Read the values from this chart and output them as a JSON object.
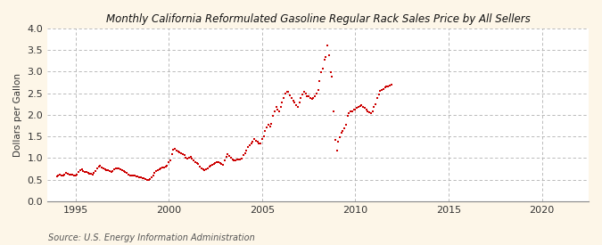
{
  "title": "Monthly California Reformulated Gasoline Regular Rack Sales Price by All Sellers",
  "ylabel": "Dollars per Gallon",
  "source": "Source: U.S. Energy Information Administration",
  "background_color": "#fdf6e8",
  "plot_bg_color": "#ffffff",
  "dot_color": "#cc0000",
  "xlim": [
    1993.5,
    2022.5
  ],
  "ylim": [
    0.0,
    4.0
  ],
  "xticks": [
    1995,
    2000,
    2005,
    2010,
    2015,
    2020
  ],
  "yticks": [
    0.0,
    0.5,
    1.0,
    1.5,
    2.0,
    2.5,
    3.0,
    3.5,
    4.0
  ],
  "data": [
    [
      1994.0,
      0.58
    ],
    [
      1994.083,
      0.6
    ],
    [
      1994.167,
      0.61
    ],
    [
      1994.25,
      0.6
    ],
    [
      1994.333,
      0.6
    ],
    [
      1994.417,
      0.62
    ],
    [
      1994.5,
      0.65
    ],
    [
      1994.583,
      0.64
    ],
    [
      1994.667,
      0.62
    ],
    [
      1994.75,
      0.61
    ],
    [
      1994.833,
      0.62
    ],
    [
      1994.917,
      0.6
    ],
    [
      1995.0,
      0.6
    ],
    [
      1995.083,
      0.62
    ],
    [
      1995.167,
      0.68
    ],
    [
      1995.25,
      0.72
    ],
    [
      1995.333,
      0.73
    ],
    [
      1995.417,
      0.7
    ],
    [
      1995.5,
      0.68
    ],
    [
      1995.583,
      0.67
    ],
    [
      1995.667,
      0.65
    ],
    [
      1995.75,
      0.64
    ],
    [
      1995.833,
      0.63
    ],
    [
      1995.917,
      0.62
    ],
    [
      1996.0,
      0.65
    ],
    [
      1996.083,
      0.7
    ],
    [
      1996.167,
      0.76
    ],
    [
      1996.25,
      0.8
    ],
    [
      1996.333,
      0.82
    ],
    [
      1996.417,
      0.79
    ],
    [
      1996.5,
      0.76
    ],
    [
      1996.583,
      0.74
    ],
    [
      1996.667,
      0.72
    ],
    [
      1996.75,
      0.71
    ],
    [
      1996.833,
      0.7
    ],
    [
      1996.917,
      0.68
    ],
    [
      1997.0,
      0.7
    ],
    [
      1997.083,
      0.73
    ],
    [
      1997.167,
      0.76
    ],
    [
      1997.25,
      0.77
    ],
    [
      1997.333,
      0.76
    ],
    [
      1997.417,
      0.74
    ],
    [
      1997.5,
      0.72
    ],
    [
      1997.583,
      0.7
    ],
    [
      1997.667,
      0.68
    ],
    [
      1997.75,
      0.65
    ],
    [
      1997.833,
      0.62
    ],
    [
      1997.917,
      0.6
    ],
    [
      1998.0,
      0.59
    ],
    [
      1998.083,
      0.59
    ],
    [
      1998.167,
      0.59
    ],
    [
      1998.25,
      0.58
    ],
    [
      1998.333,
      0.57
    ],
    [
      1998.417,
      0.56
    ],
    [
      1998.5,
      0.55
    ],
    [
      1998.583,
      0.54
    ],
    [
      1998.667,
      0.53
    ],
    [
      1998.75,
      0.52
    ],
    [
      1998.833,
      0.5
    ],
    [
      1998.917,
      0.49
    ],
    [
      1999.0,
      0.52
    ],
    [
      1999.083,
      0.55
    ],
    [
      1999.167,
      0.6
    ],
    [
      1999.25,
      0.65
    ],
    [
      1999.333,
      0.7
    ],
    [
      1999.417,
      0.72
    ],
    [
      1999.5,
      0.75
    ],
    [
      1999.583,
      0.76
    ],
    [
      1999.667,
      0.78
    ],
    [
      1999.75,
      0.79
    ],
    [
      1999.833,
      0.8
    ],
    [
      1999.917,
      0.82
    ],
    [
      2000.0,
      0.9
    ],
    [
      2000.083,
      0.95
    ],
    [
      2000.167,
      1.1
    ],
    [
      2000.25,
      1.2
    ],
    [
      2000.333,
      1.22
    ],
    [
      2000.417,
      1.18
    ],
    [
      2000.5,
      1.15
    ],
    [
      2000.583,
      1.14
    ],
    [
      2000.667,
      1.12
    ],
    [
      2000.75,
      1.1
    ],
    [
      2000.833,
      1.08
    ],
    [
      2000.917,
      1.0
    ],
    [
      2001.0,
      0.99
    ],
    [
      2001.083,
      1.01
    ],
    [
      2001.167,
      1.02
    ],
    [
      2001.25,
      0.98
    ],
    [
      2001.333,
      0.94
    ],
    [
      2001.417,
      0.91
    ],
    [
      2001.5,
      0.89
    ],
    [
      2001.583,
      0.87
    ],
    [
      2001.667,
      0.8
    ],
    [
      2001.75,
      0.77
    ],
    [
      2001.833,
      0.74
    ],
    [
      2001.917,
      0.72
    ],
    [
      2002.0,
      0.74
    ],
    [
      2002.083,
      0.77
    ],
    [
      2002.167,
      0.8
    ],
    [
      2002.25,
      0.82
    ],
    [
      2002.333,
      0.85
    ],
    [
      2002.417,
      0.87
    ],
    [
      2002.5,
      0.89
    ],
    [
      2002.583,
      0.91
    ],
    [
      2002.667,
      0.91
    ],
    [
      2002.75,
      0.89
    ],
    [
      2002.833,
      0.87
    ],
    [
      2002.917,
      0.85
    ],
    [
      2003.0,
      0.95
    ],
    [
      2003.083,
      1.02
    ],
    [
      2003.167,
      1.1
    ],
    [
      2003.25,
      1.05
    ],
    [
      2003.333,
      1.0
    ],
    [
      2003.417,
      0.97
    ],
    [
      2003.5,
      0.95
    ],
    [
      2003.583,
      0.95
    ],
    [
      2003.667,
      0.97
    ],
    [
      2003.75,
      0.97
    ],
    [
      2003.833,
      0.97
    ],
    [
      2003.917,
      0.99
    ],
    [
      2004.0,
      1.07
    ],
    [
      2004.083,
      1.12
    ],
    [
      2004.167,
      1.18
    ],
    [
      2004.25,
      1.25
    ],
    [
      2004.333,
      1.3
    ],
    [
      2004.417,
      1.34
    ],
    [
      2004.5,
      1.38
    ],
    [
      2004.583,
      1.44
    ],
    [
      2004.667,
      1.41
    ],
    [
      2004.75,
      1.37
    ],
    [
      2004.833,
      1.34
    ],
    [
      2004.917,
      1.34
    ],
    [
      2005.0,
      1.45
    ],
    [
      2005.083,
      1.5
    ],
    [
      2005.167,
      1.62
    ],
    [
      2005.25,
      1.7
    ],
    [
      2005.333,
      1.78
    ],
    [
      2005.417,
      1.74
    ],
    [
      2005.5,
      1.8
    ],
    [
      2005.583,
      1.98
    ],
    [
      2005.667,
      2.08
    ],
    [
      2005.75,
      2.18
    ],
    [
      2005.833,
      2.12
    ],
    [
      2005.917,
      2.08
    ],
    [
      2006.0,
      2.18
    ],
    [
      2006.083,
      2.28
    ],
    [
      2006.167,
      2.4
    ],
    [
      2006.25,
      2.5
    ],
    [
      2006.333,
      2.54
    ],
    [
      2006.417,
      2.53
    ],
    [
      2006.5,
      2.46
    ],
    [
      2006.583,
      2.38
    ],
    [
      2006.667,
      2.33
    ],
    [
      2006.75,
      2.28
    ],
    [
      2006.833,
      2.22
    ],
    [
      2006.917,
      2.18
    ],
    [
      2007.0,
      2.28
    ],
    [
      2007.083,
      2.38
    ],
    [
      2007.167,
      2.48
    ],
    [
      2007.25,
      2.53
    ],
    [
      2007.333,
      2.49
    ],
    [
      2007.417,
      2.44
    ],
    [
      2007.5,
      2.44
    ],
    [
      2007.583,
      2.39
    ],
    [
      2007.667,
      2.37
    ],
    [
      2007.75,
      2.39
    ],
    [
      2007.833,
      2.44
    ],
    [
      2007.917,
      2.49
    ],
    [
      2008.0,
      2.58
    ],
    [
      2008.083,
      2.78
    ],
    [
      2008.167,
      2.98
    ],
    [
      2008.25,
      3.08
    ],
    [
      2008.333,
      3.28
    ],
    [
      2008.417,
      3.33
    ],
    [
      2008.5,
      3.6
    ],
    [
      2008.583,
      3.38
    ],
    [
      2008.667,
      2.98
    ],
    [
      2008.75,
      2.88
    ],
    [
      2008.833,
      2.08
    ],
    [
      2008.917,
      1.43
    ],
    [
      2009.0,
      1.18
    ],
    [
      2009.083,
      1.38
    ],
    [
      2009.167,
      1.48
    ],
    [
      2009.25,
      1.58
    ],
    [
      2009.333,
      1.63
    ],
    [
      2009.417,
      1.68
    ],
    [
      2009.5,
      1.78
    ],
    [
      2009.583,
      1.98
    ],
    [
      2009.667,
      2.03
    ],
    [
      2009.75,
      2.08
    ],
    [
      2009.833,
      2.08
    ],
    [
      2009.917,
      2.13
    ],
    [
      2010.0,
      2.13
    ],
    [
      2010.083,
      2.16
    ],
    [
      2010.167,
      2.18
    ],
    [
      2010.25,
      2.2
    ],
    [
      2010.333,
      2.23
    ],
    [
      2010.417,
      2.18
    ],
    [
      2010.5,
      2.16
    ],
    [
      2010.583,
      2.13
    ],
    [
      2010.667,
      2.08
    ],
    [
      2010.75,
      2.06
    ],
    [
      2010.833,
      2.03
    ],
    [
      2010.917,
      2.08
    ],
    [
      2011.0,
      2.18
    ],
    [
      2011.083,
      2.25
    ],
    [
      2011.167,
      2.38
    ],
    [
      2011.25,
      2.48
    ],
    [
      2011.333,
      2.55
    ],
    [
      2011.417,
      2.58
    ],
    [
      2011.5,
      2.6
    ],
    [
      2011.583,
      2.63
    ],
    [
      2011.667,
      2.65
    ],
    [
      2011.75,
      2.65
    ],
    [
      2011.833,
      2.68
    ],
    [
      2011.917,
      2.7
    ]
  ]
}
